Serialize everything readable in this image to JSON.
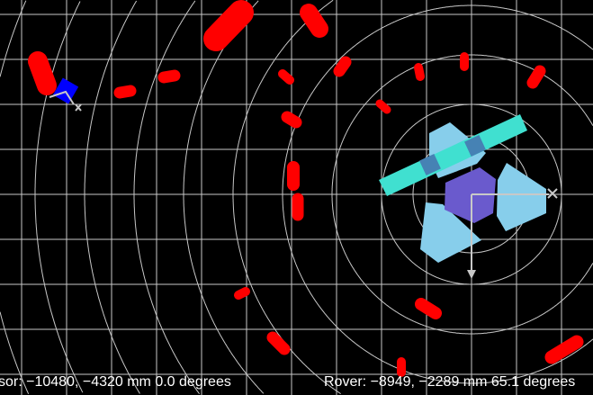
{
  "status": {
    "sensor_text": "sor: −10480, −4320 mm 0.0 degrees",
    "rover_text": "Rover: −8949, −2289 mm 65.1 degrees"
  },
  "colors": {
    "background": "#000000",
    "grid": "#c8c8c8",
    "obstacle": "#ff0000",
    "rover_body": "#6a5acd",
    "rover_wheel": "#87ceeb",
    "solar_panel": "#40e0d0",
    "panel_joint": "#4682b4",
    "sensor_robot": "#0000ff"
  },
  "icons": {
    "axis_x_marker": "x-cross-icon",
    "axis_y_marker": "arrow-down-icon"
  }
}
